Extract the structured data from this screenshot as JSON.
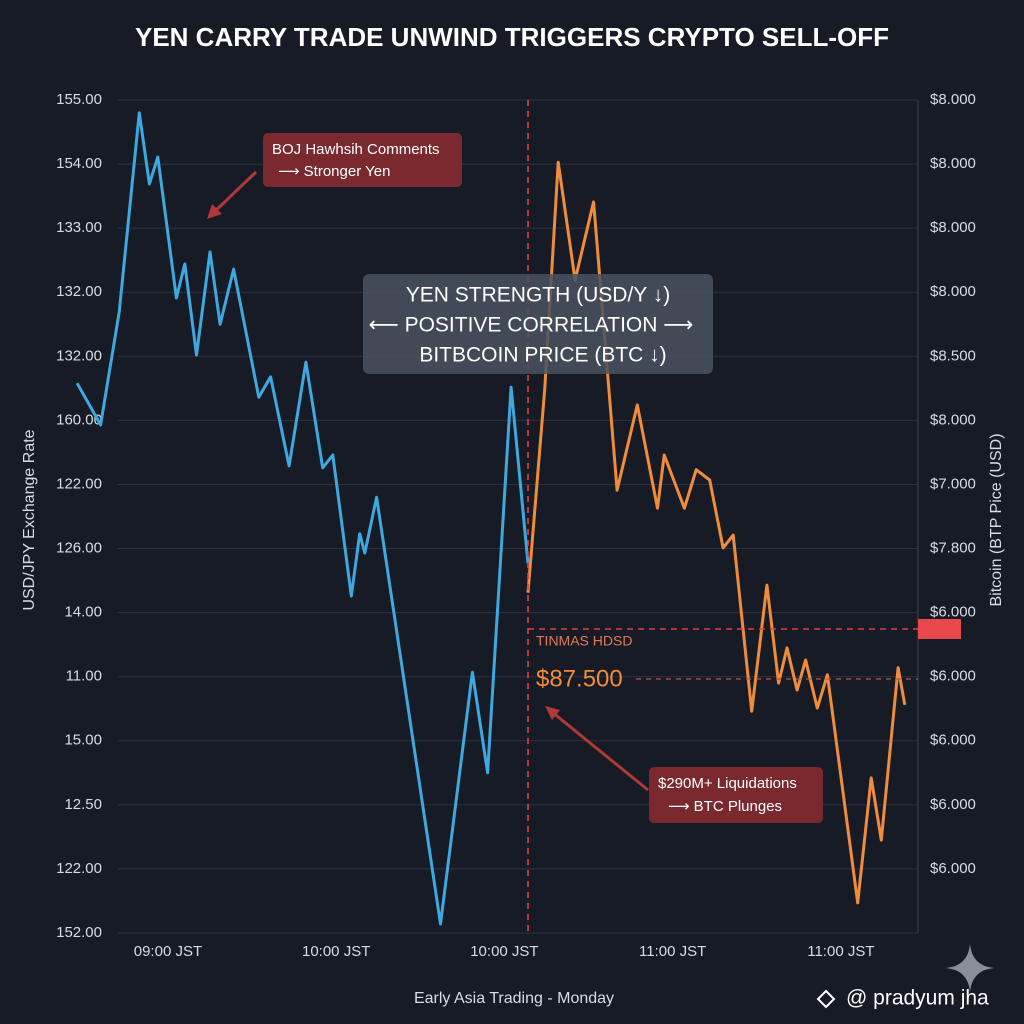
{
  "chart_data": {
    "type": "line",
    "title": "YEN CARRY TRADE UNWIND TRIGGERS CRYPTO SELL-OFF",
    "ylabel": "USD/JPY Exchange Rate",
    "y2label": "Bitcoin (BTP Pice (USD)",
    "xlabel": "Early Asia Trading - Monday",
    "xlim": [
      -0.6,
      4.5
    ],
    "xticks": [
      {
        "value": 0,
        "label": "09:00 JST"
      },
      {
        "value": 1,
        "label": "10:00 JST"
      },
      {
        "value": 2,
        "label": "10:00 JST"
      },
      {
        "value": 3,
        "label": "11:00 JST"
      },
      {
        "value": 4,
        "label": "11:00 JST"
      }
    ],
    "ylim": [
      0,
      13
    ],
    "yticks": [
      {
        "value": 0,
        "label": "152.00"
      },
      {
        "value": 1,
        "label": "122.00"
      },
      {
        "value": 2,
        "label": "12.50"
      },
      {
        "value": 3,
        "label": "15.00"
      },
      {
        "value": 4,
        "label": "11.00"
      },
      {
        "value": 5,
        "label": "14.00"
      },
      {
        "value": 6,
        "label": "126.00"
      },
      {
        "value": 7,
        "label": "122.00"
      },
      {
        "value": 8,
        "label": "160.00"
      },
      {
        "value": 9,
        "label": "132.00"
      },
      {
        "value": 10,
        "label": "132.00"
      },
      {
        "value": 11,
        "label": "133.00"
      },
      {
        "value": 12,
        "label": "154.00"
      },
      {
        "value": 13,
        "label": "155.00"
      }
    ],
    "y2lim": [
      0,
      13
    ],
    "y2ticks": [
      {
        "value": 1,
        "label": "$6.000"
      },
      {
        "value": 2,
        "label": "$6.000"
      },
      {
        "value": 3,
        "label": "$6.000"
      },
      {
        "value": 4,
        "label": "$6.000"
      },
      {
        "value": 5,
        "label": "$6.000"
      },
      {
        "value": 6,
        "label": "$7.800"
      },
      {
        "value": 7,
        "label": "$7.000"
      },
      {
        "value": 8,
        "label": "$8.000"
      },
      {
        "value": 9,
        "label": "$8.500"
      },
      {
        "value": 10,
        "label": "$8.000"
      },
      {
        "value": 11,
        "label": "$8.000"
      },
      {
        "value": 12,
        "label": "$8.000"
      },
      {
        "value": 13,
        "label": "$8.000"
      }
    ],
    "grid": true,
    "series": [
      {
        "color": "#3ea8e0",
        "x": [
          -0.54,
          -0.4,
          -0.29,
          -0.17,
          -0.11,
          -0.06,
          0.05,
          0.1,
          0.17,
          0.25,
          0.31,
          0.39,
          0.54,
          0.61,
          0.72,
          0.82,
          0.92,
          0.98,
          1.09,
          1.14,
          1.17,
          1.24,
          1.62,
          1.81,
          1.9,
          2.04,
          2.14
        ],
        "values": [
          8.58,
          7.93,
          9.69,
          12.8,
          11.69,
          12.11,
          9.91,
          10.44,
          9.02,
          10.63,
          9.5,
          10.36,
          8.36,
          8.68,
          7.29,
          8.91,
          7.26,
          7.46,
          5.26,
          6.23,
          5.93,
          6.8,
          0.14,
          4.07,
          2.5,
          8.52,
          5.77
        ]
      },
      {
        "color": "#f08c3a",
        "axis": "y2",
        "x": [
          2.14,
          2.24,
          2.32,
          2.42,
          2.53,
          2.67,
          2.79,
          2.91,
          2.95,
          3.07,
          3.14,
          3.22,
          3.3,
          3.36,
          3.47,
          3.56,
          3.63,
          3.68,
          3.74,
          3.79,
          3.86,
          3.92,
          4.1,
          4.18,
          4.24,
          4.34,
          4.38
        ],
        "values": [
          5.31,
          8.5,
          12.03,
          10.19,
          11.41,
          6.91,
          8.24,
          6.63,
          7.46,
          6.63,
          7.23,
          7.07,
          6.01,
          6.21,
          3.46,
          5.43,
          3.9,
          4.45,
          3.79,
          4.26,
          3.51,
          4.03,
          0.47,
          2.42,
          1.45,
          4.14,
          3.56
        ]
      }
    ],
    "annotations": {
      "boj": [
        "BOJ Hawhsih Comments",
        "⟶ Stronger Yen"
      ],
      "correlation": [
        "YEN STRENGTH (USD/Y ↓)",
        "⟵ POSITIVE CORRELATION ⟶",
        "BITBCOIN PRICE (BTC ↓)"
      ],
      "level_name": "TINMAS HDSD",
      "level_price": "$87.500",
      "liquidations": [
        "$290M+ Liquidations",
        "⟶ BTC Plunges"
      ]
    },
    "watermark": "@ pradyum jha"
  }
}
